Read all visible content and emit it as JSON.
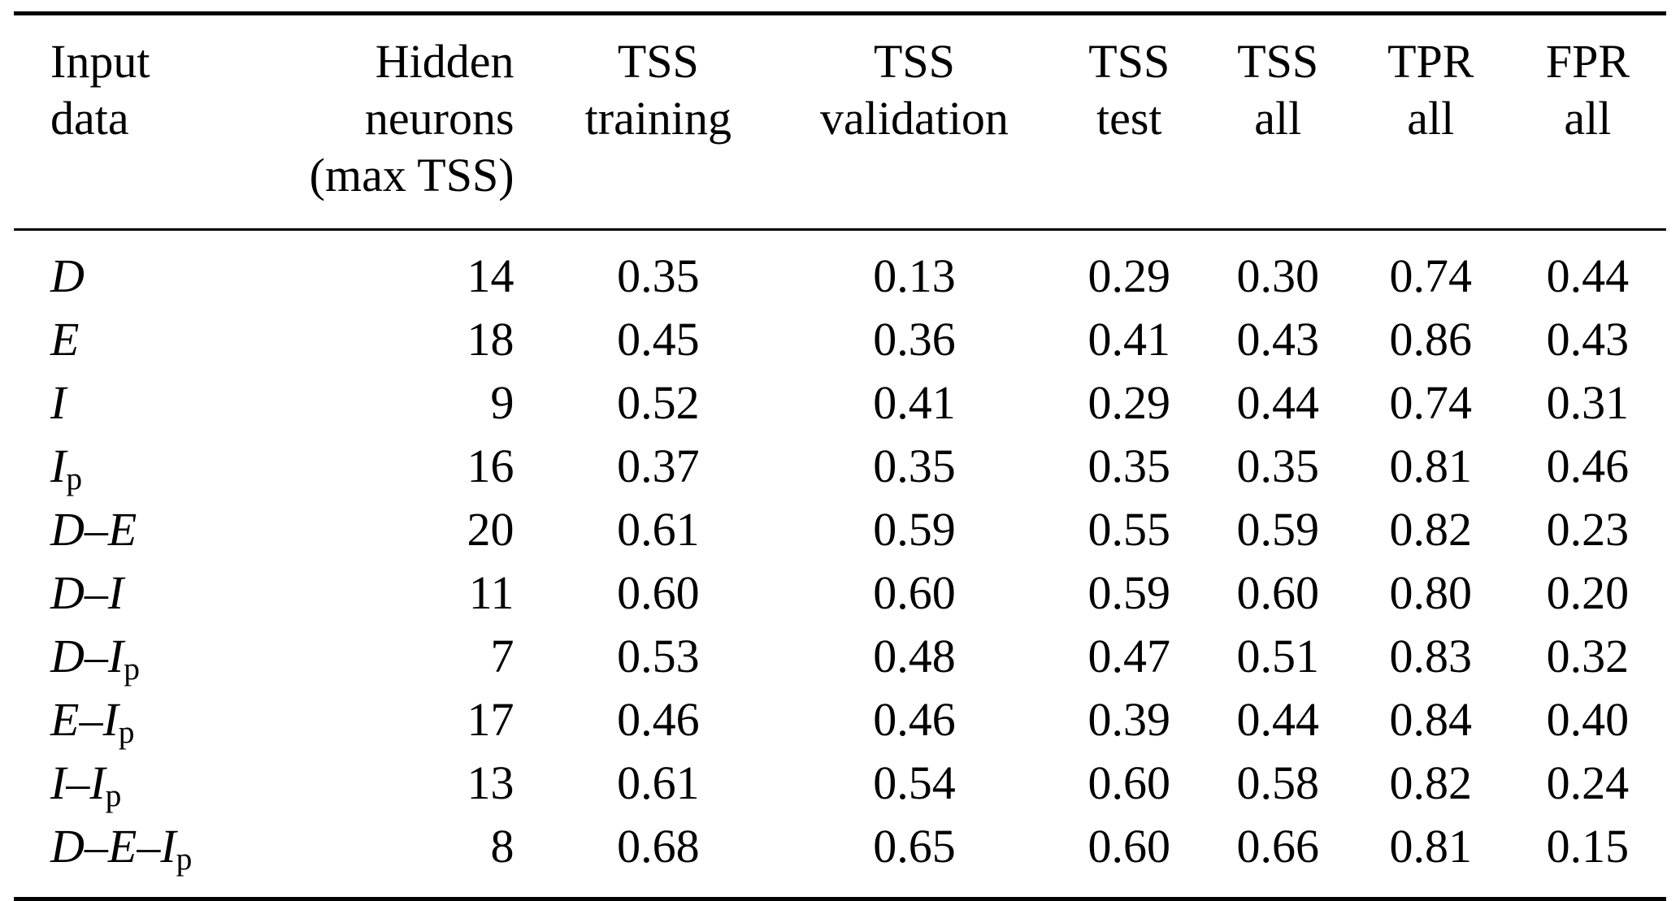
{
  "colors": {
    "background": "#ffffff",
    "text": "#000000",
    "rule": "#000000"
  },
  "table": {
    "columns": [
      {
        "id": "input",
        "align": "left",
        "label_lines": [
          "Input",
          "data"
        ]
      },
      {
        "id": "hidden-neurons",
        "align": "right",
        "label_lines": [
          "Hidden",
          "neurons",
          "(max TSS)"
        ]
      },
      {
        "id": "tss-training",
        "align": "center",
        "label_lines": [
          "TSS",
          "training"
        ]
      },
      {
        "id": "tss-validation",
        "align": "center",
        "label_lines": [
          "TSS",
          "validation"
        ]
      },
      {
        "id": "tss-test",
        "align": "center",
        "label_lines": [
          "TSS",
          "test"
        ]
      },
      {
        "id": "tss-all",
        "align": "center",
        "label_lines": [
          "TSS",
          "all"
        ]
      },
      {
        "id": "tpr-all",
        "align": "center",
        "label_lines": [
          "TPR",
          "all"
        ]
      },
      {
        "id": "fpr-all",
        "align": "center",
        "label_lines": [
          "FPR",
          "all"
        ]
      }
    ],
    "rows": [
      {
        "label": "D",
        "values": [
          "14",
          "0.35",
          "0.13",
          "0.29",
          "0.30",
          "0.74",
          "0.44"
        ]
      },
      {
        "label": "E",
        "values": [
          "18",
          "0.45",
          "0.36",
          "0.41",
          "0.43",
          "0.86",
          "0.43"
        ]
      },
      {
        "label": "I",
        "values": [
          "9",
          "0.52",
          "0.41",
          "0.29",
          "0.44",
          "0.74",
          "0.31"
        ]
      },
      {
        "label": "I_p",
        "values": [
          "16",
          "0.37",
          "0.35",
          "0.35",
          "0.35",
          "0.81",
          "0.46"
        ]
      },
      {
        "label": "D–E",
        "values": [
          "20",
          "0.61",
          "0.59",
          "0.55",
          "0.59",
          "0.82",
          "0.23"
        ]
      },
      {
        "label": "D–I",
        "values": [
          "11",
          "0.60",
          "0.60",
          "0.59",
          "0.60",
          "0.80",
          "0.20"
        ]
      },
      {
        "label": "D–I_p",
        "values": [
          "7",
          "0.53",
          "0.48",
          "0.47",
          "0.51",
          "0.83",
          "0.32"
        ]
      },
      {
        "label": "E–I_p",
        "values": [
          "17",
          "0.46",
          "0.46",
          "0.39",
          "0.44",
          "0.84",
          "0.40"
        ]
      },
      {
        "label": "I–I_p",
        "values": [
          "13",
          "0.61",
          "0.54",
          "0.60",
          "0.58",
          "0.82",
          "0.24"
        ]
      },
      {
        "label": "D–E–I_p",
        "values": [
          "8",
          "0.68",
          "0.65",
          "0.60",
          "0.66",
          "0.81",
          "0.15"
        ]
      }
    ]
  },
  "chart_data": {
    "type": "table",
    "columns": [
      "Input data",
      "Hidden neurons (max TSS)",
      "TSS training",
      "TSS validation",
      "TSS test",
      "TSS all",
      "TPR all",
      "FPR all"
    ],
    "rows": [
      [
        "D",
        14,
        0.35,
        0.13,
        0.29,
        0.3,
        0.74,
        0.44
      ],
      [
        "E",
        18,
        0.45,
        0.36,
        0.41,
        0.43,
        0.86,
        0.43
      ],
      [
        "I",
        9,
        0.52,
        0.41,
        0.29,
        0.44,
        0.74,
        0.31
      ],
      [
        "I_p",
        16,
        0.37,
        0.35,
        0.35,
        0.35,
        0.81,
        0.46
      ],
      [
        "D–E",
        20,
        0.61,
        0.59,
        0.55,
        0.59,
        0.82,
        0.23
      ],
      [
        "D–I",
        11,
        0.6,
        0.6,
        0.59,
        0.6,
        0.8,
        0.2
      ],
      [
        "D–I_p",
        7,
        0.53,
        0.48,
        0.47,
        0.51,
        0.83,
        0.32
      ],
      [
        "E–I_p",
        17,
        0.46,
        0.46,
        0.39,
        0.44,
        0.84,
        0.4
      ],
      [
        "I–I_p",
        13,
        0.61,
        0.54,
        0.6,
        0.58,
        0.82,
        0.24
      ],
      [
        "D–E–I_p",
        8,
        0.68,
        0.65,
        0.6,
        0.66,
        0.81,
        0.15
      ]
    ]
  }
}
